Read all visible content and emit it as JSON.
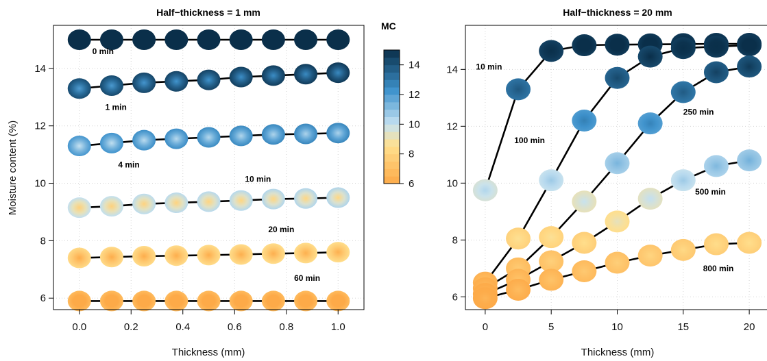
{
  "figure": {
    "ylabel": "Moisture content (%)",
    "colorbar": {
      "title": "MC",
      "ticks": [
        "6",
        "8",
        "10",
        "12",
        "14"
      ],
      "range": [
        6,
        15
      ],
      "colors": {
        "low": "#FDAA48",
        "mid_low": "#FFE08F",
        "mid": "#C6E2F2",
        "mid_high": "#3E92CC",
        "high": "#0A2F4A"
      }
    }
  },
  "chart_data": [
    {
      "type": "scatter",
      "title": "Half−thickness = 1 mm",
      "xlabel": "Thickness (mm)",
      "ylabel": "Moisture content (%)",
      "xlim": [
        -0.1,
        1.1
      ],
      "ylim": [
        5.6,
        15.5
      ],
      "xticks": [
        "0.0",
        "0.2",
        "0.4",
        "0.6",
        "0.8",
        "1.0"
      ],
      "yticks": [
        "6",
        "8",
        "10",
        "12",
        "14"
      ],
      "grid": true,
      "x": [
        0.0,
        0.125,
        0.25,
        0.375,
        0.5,
        0.625,
        0.75,
        0.875,
        1.0
      ],
      "series": [
        {
          "name": "0 min",
          "values": [
            15.0,
            15.0,
            15.0,
            15.0,
            15.0,
            15.0,
            15.0,
            15.0,
            15.0
          ],
          "label": {
            "x": 0.05,
            "y": 14.5
          }
        },
        {
          "name": "1 min",
          "values": [
            13.3,
            13.4,
            13.5,
            13.55,
            13.6,
            13.7,
            13.75,
            13.8,
            13.85
          ],
          "label": {
            "x": 0.1,
            "y": 12.55
          }
        },
        {
          "name": "4 min",
          "values": [
            11.3,
            11.4,
            11.5,
            11.55,
            11.6,
            11.65,
            11.7,
            11.72,
            11.75
          ],
          "label": {
            "x": 0.15,
            "y": 10.55
          }
        },
        {
          "name": "10 min",
          "values": [
            9.15,
            9.2,
            9.28,
            9.32,
            9.36,
            9.4,
            9.45,
            9.47,
            9.5
          ],
          "label": {
            "x": 0.64,
            "y": 10.05
          }
        },
        {
          "name": "20 min",
          "values": [
            7.4,
            7.43,
            7.46,
            7.48,
            7.5,
            7.52,
            7.55,
            7.57,
            7.6
          ],
          "label": {
            "x": 0.73,
            "y": 8.3
          }
        },
        {
          "name": "60 min",
          "values": [
            5.9,
            5.9,
            5.9,
            5.9,
            5.9,
            5.9,
            5.9,
            5.9,
            5.9
          ],
          "label": {
            "x": 0.83,
            "y": 6.6
          }
        }
      ]
    },
    {
      "type": "line",
      "title": "Half−thickness = 20 mm",
      "xlabel": "Thickness (mm)",
      "xlim": [
        -1.5,
        21.5
      ],
      "ylim": [
        5.55,
        15.55
      ],
      "xticks": [
        "0",
        "5",
        "10",
        "15",
        "20"
      ],
      "yticks": [
        "6",
        "8",
        "10",
        "12",
        "14"
      ],
      "grid": true,
      "x": [
        0,
        2.5,
        5,
        7.5,
        10,
        12.5,
        15,
        17.5,
        20
      ],
      "series": [
        {
          "name": "10 min",
          "values": [
            9.75,
            13.3,
            14.65,
            14.85,
            14.87,
            14.88,
            14.89,
            14.9,
            14.9
          ],
          "label": {
            "x": -0.7,
            "y": 14.0
          }
        },
        {
          "name": "100 min",
          "values": [
            6.5,
            8.05,
            10.1,
            12.2,
            13.7,
            14.45,
            14.75,
            14.8,
            14.85
          ],
          "label": {
            "x": 2.2,
            "y": 11.4
          }
        },
        {
          "name": "250 min",
          "values": [
            6.3,
            7.0,
            8.1,
            9.35,
            10.7,
            12.1,
            13.2,
            13.9,
            14.1
          ],
          "label": {
            "x": 15.0,
            "y": 12.4
          }
        },
        {
          "name": "500 min",
          "values": [
            6.1,
            6.6,
            7.25,
            7.9,
            8.65,
            9.45,
            10.1,
            10.6,
            10.8
          ],
          "label": {
            "x": 15.9,
            "y": 9.6
          }
        },
        {
          "name": "800 min",
          "values": [
            5.95,
            6.25,
            6.6,
            6.9,
            7.2,
            7.45,
            7.65,
            7.85,
            7.9
          ],
          "label": {
            "x": 16.5,
            "y": 6.9
          }
        }
      ]
    }
  ]
}
